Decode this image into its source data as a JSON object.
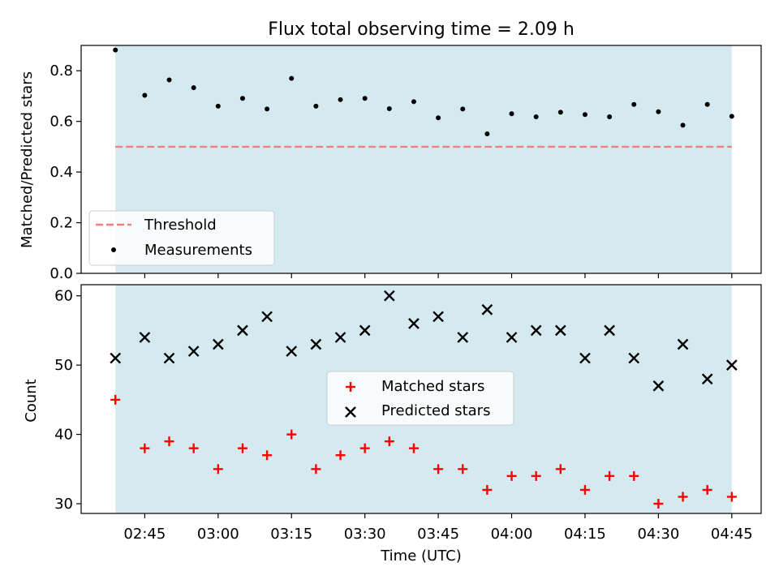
{
  "title": "Flux total observing time = 2.09 h",
  "xlabel": "Time (UTC)",
  "x_ticks": [
    "02:45",
    "03:00",
    "03:15",
    "03:30",
    "03:45",
    "04:00",
    "04:15",
    "04:30",
    "04:45"
  ],
  "colors": {
    "shaded_background": "#d4eaf0",
    "threshold_line": "#f08080",
    "measurements": "#000000",
    "matched": "#ff0000",
    "predicted": "#000000"
  },
  "chart_data": [
    {
      "type": "scatter",
      "ylabel": "Matched/Predicted stars",
      "ylim": [
        0,
        0.9
      ],
      "xlim": [
        "02:32",
        "04:51"
      ],
      "y_ticks": [
        "0.0",
        "0.2",
        "0.4",
        "0.6",
        "0.8"
      ],
      "y_tick_values": [
        0,
        0.2,
        0.4,
        0.6,
        0.8
      ],
      "shaded_span": [
        "02:39",
        "04:45"
      ],
      "legend_position": "lower-left",
      "grid": false,
      "threshold": {
        "name": "Threshold",
        "value": 0.5,
        "x": [
          "02:39",
          "04:45"
        ]
      },
      "series": [
        {
          "name": "Measurements",
          "marker": "dot",
          "x": [
            "02:39",
            "02:45",
            "02:50",
            "02:55",
            "03:00",
            "03:05",
            "03:10",
            "03:15",
            "03:20",
            "03:25",
            "03:30",
            "03:35",
            "03:40",
            "03:45",
            "03:50",
            "03:55",
            "04:00",
            "04:05",
            "04:10",
            "04:15",
            "04:20",
            "04:25",
            "04:30",
            "04:35",
            "04:40",
            "04:45"
          ],
          "values": [
            0.882,
            0.703,
            0.764,
            0.733,
            0.66,
            0.691,
            0.649,
            0.77,
            0.66,
            0.686,
            0.691,
            0.65,
            0.678,
            0.614,
            0.649,
            0.551,
            0.63,
            0.618,
            0.636,
            0.627,
            0.618,
            0.667,
            0.638,
            0.585,
            0.667,
            0.62
          ]
        }
      ]
    },
    {
      "type": "scatter",
      "ylabel": "Count",
      "ylim": [
        28.6,
        61.6
      ],
      "xlim": [
        "02:32",
        "04:51"
      ],
      "y_ticks": [
        "30",
        "40",
        "50",
        "60"
      ],
      "y_tick_values": [
        30,
        40,
        50,
        60
      ],
      "shaded_span": [
        "02:39",
        "04:45"
      ],
      "legend_position": "center",
      "grid": false,
      "series": [
        {
          "name": "Matched stars",
          "marker": "plus",
          "x": [
            "02:39",
            "02:45",
            "02:50",
            "02:55",
            "03:00",
            "03:05",
            "03:10",
            "03:15",
            "03:20",
            "03:25",
            "03:30",
            "03:35",
            "03:40",
            "03:45",
            "03:50",
            "03:55",
            "04:00",
            "04:05",
            "04:10",
            "04:15",
            "04:20",
            "04:25",
            "04:30",
            "04:35",
            "04:40",
            "04:45"
          ],
          "values": [
            45,
            38,
            39,
            38,
            35,
            38,
            37,
            40,
            35,
            37,
            38,
            39,
            38,
            35,
            35,
            32,
            34,
            34,
            35,
            32,
            34,
            34,
            30,
            31,
            32,
            31
          ]
        },
        {
          "name": "Predicted stars",
          "marker": "x",
          "x": [
            "02:39",
            "02:45",
            "02:50",
            "02:55",
            "03:00",
            "03:05",
            "03:10",
            "03:15",
            "03:20",
            "03:25",
            "03:30",
            "03:35",
            "03:40",
            "03:45",
            "03:50",
            "03:55",
            "04:00",
            "04:05",
            "04:10",
            "04:15",
            "04:20",
            "04:25",
            "04:30",
            "04:35",
            "04:40",
            "04:45"
          ],
          "values": [
            51,
            54,
            51,
            52,
            53,
            55,
            57,
            52,
            53,
            54,
            55,
            60,
            56,
            57,
            54,
            58,
            54,
            55,
            55,
            51,
            55,
            51,
            47,
            53,
            48,
            50
          ]
        }
      ]
    }
  ]
}
